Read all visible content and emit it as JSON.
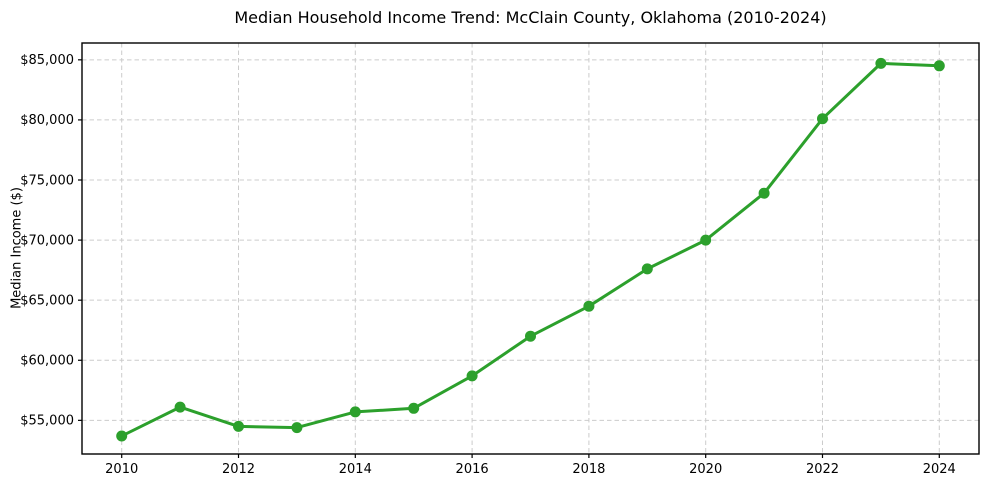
{
  "chart_data": {
    "type": "line",
    "title": "Median Household Income Trend: McClain County, Oklahoma (2010-2024)",
    "xlabel": "",
    "ylabel": "Median Income ($)",
    "series_name": "Median Household Income",
    "x": [
      2010,
      2011,
      2012,
      2013,
      2014,
      2015,
      2016,
      2017,
      2018,
      2019,
      2020,
      2021,
      2022,
      2023,
      2024
    ],
    "values": [
      53700,
      56100,
      54500,
      54400,
      55700,
      56000,
      58700,
      62000,
      64500,
      67600,
      70000,
      73900,
      80100,
      84700,
      84500
    ],
    "x_ticks": [
      2010,
      2012,
      2014,
      2016,
      2018,
      2020,
      2022,
      2024
    ],
    "y_ticks": [
      55000,
      60000,
      65000,
      70000,
      75000,
      80000,
      85000
    ],
    "y_tick_prefix": "$",
    "xlim": [
      2009.32,
      2024.68
    ],
    "ylim": [
      52200,
      86400
    ],
    "grid": "both-dashed",
    "legend": "none",
    "line_color": "#2ca02c",
    "marker": "circle",
    "grid_color": "#cccccc",
    "spine_color": "#000000",
    "background_color": "#ffffff"
  }
}
